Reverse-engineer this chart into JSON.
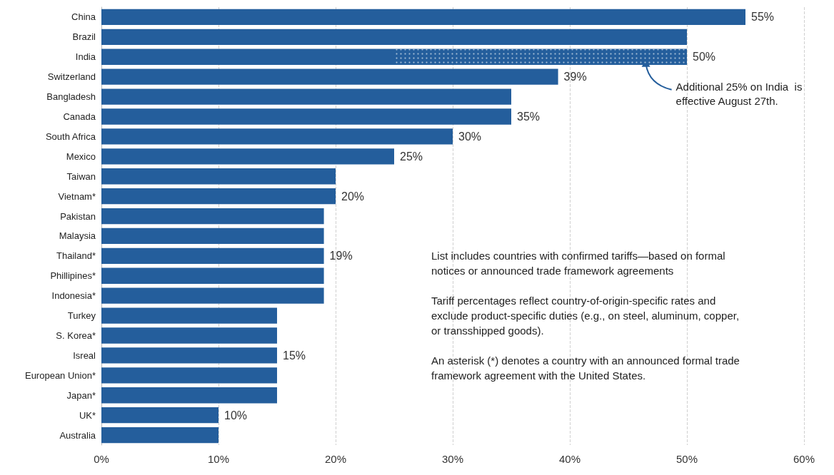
{
  "chart_data": {
    "type": "bar",
    "orientation": "horizontal",
    "stacked": true,
    "categories": [
      "China",
      "Brazil",
      "India",
      "Switzerland",
      "Bangladesh",
      "Canada",
      "South Africa",
      "Mexico",
      "Taiwan",
      "Vietnam*",
      "Pakistan",
      "Malaysia",
      "Thailand*",
      "Phillipines*",
      "Indonesia*",
      "Turkey",
      "S. Korea*",
      "Isreal",
      "European Union*",
      "Japan*",
      "UK*",
      "Australia"
    ],
    "series": [
      {
        "color": "#245e9c",
        "values": [
          55,
          50,
          25,
          39,
          35,
          35,
          30,
          25,
          20,
          20,
          19,
          19,
          19,
          19,
          19,
          15,
          15,
          15,
          15,
          15,
          10,
          10
        ]
      },
      {
        "color": "#245e9c",
        "values": [
          null,
          null,
          25,
          null,
          null,
          null,
          null,
          null,
          null,
          null,
          null,
          null,
          null,
          null,
          null,
          null,
          null,
          null,
          null,
          null,
          null,
          null
        ]
      }
    ],
    "totals": [
      "55%",
      null,
      "50%",
      "39%",
      null,
      "35%",
      "30%",
      "25%",
      null,
      "20%",
      null,
      null,
      "19%",
      null,
      null,
      null,
      null,
      "15%",
      null,
      null,
      "10%",
      null
    ],
    "xlim": [
      0,
      60
    ],
    "xticks": [
      {
        "value": 0,
        "label": "0%"
      },
      {
        "value": 10,
        "label": "10%"
      },
      {
        "value": 20,
        "label": "20%"
      },
      {
        "value": 30,
        "label": "30%"
      },
      {
        "value": 40,
        "label": "40%"
      },
      {
        "value": 50,
        "label": "50%"
      },
      {
        "value": 60,
        "label": "60%"
      }
    ],
    "grid": "x",
    "annotations": [
      {
        "text": "Additional 25% on India  is effective August 27th.",
        "x": 46.5,
        "y": "India"
      },
      "List includes countries with confirmed tariffs—based on formal notices or announced trade framework agreements",
      "Tariff percentages reflect country-of-origin-specific rates and exclude product-specific duties (e.g., on steel, aluminum, copper, or transshipped goods).",
      "An asterisk (*) denotes a country with an announced formal trade framework agreement with the United States."
    ]
  }
}
